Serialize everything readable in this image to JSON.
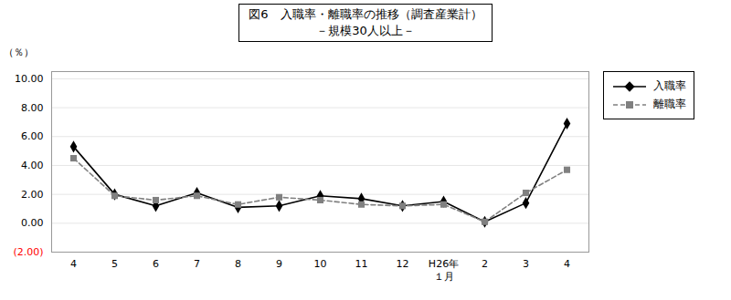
{
  "chart_data": {
    "type": "line",
    "title": "図6　入職率・離職率の推移（調査産業計）",
    "subtitle": "－規模30人以上－",
    "y_label": "（％）",
    "categories": [
      "4",
      "5",
      "6",
      "7",
      "8",
      "9",
      "10",
      "11",
      "12",
      "H26年",
      "2",
      "3",
      "4"
    ],
    "series": [
      {
        "name": "入職率",
        "color": "#000000",
        "marker": "diamond",
        "line_style": "solid",
        "values": [
          5.3,
          2.0,
          1.2,
          2.1,
          1.1,
          1.2,
          1.9,
          1.7,
          1.2,
          1.5,
          0.1,
          1.4,
          6.9
        ]
      },
      {
        "name": "離職率",
        "color": "#808080",
        "marker": "square",
        "line_style": "dashed",
        "values": [
          4.5,
          1.9,
          1.6,
          1.9,
          1.3,
          1.8,
          1.6,
          1.3,
          1.2,
          1.3,
          0.1,
          2.1,
          3.7
        ]
      }
    ],
    "ylim": [
      -2.0,
      10.5
    ],
    "yticks": [
      {
        "value": 0,
        "label": "0.00"
      },
      {
        "value": 2,
        "label": "2.00"
      },
      {
        "value": 4,
        "label": "4.00"
      },
      {
        "value": 6,
        "label": "6.00"
      },
      {
        "value": 8,
        "label": "8.00"
      },
      {
        "value": 10,
        "label": "10.00"
      }
    ],
    "grid": true,
    "legend": "right",
    "annotations": [
      {
        "text": "(2.00)",
        "y": -2.0,
        "color": "red"
      },
      {
        "text": "１月",
        "x": "H26年"
      }
    ]
  }
}
